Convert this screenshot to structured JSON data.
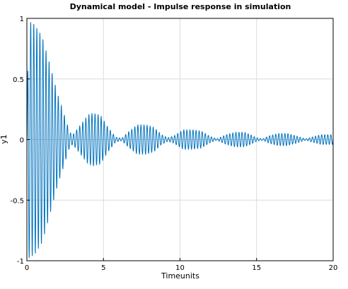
{
  "chart_data": {
    "type": "line",
    "title": "Dynamical model - Impulse response in simulation",
    "xlabel": "Timeunits",
    "ylabel": "y1",
    "xlim": [
      0,
      20
    ],
    "ylim": [
      -1,
      1
    ],
    "xticks": [
      0,
      5,
      10,
      15,
      20
    ],
    "xtick_labels": [
      "0",
      "5",
      "10",
      "15",
      "20"
    ],
    "yticks": [
      -1,
      -0.5,
      0,
      0.5,
      1
    ],
    "ytick_labels": [
      "-1",
      "-0.5",
      "0",
      "0.5",
      "1"
    ],
    "grid": true,
    "series": [
      {
        "color": "#0072bd",
        "peak_envelope": [
          [
            0.1,
            0.98
          ],
          [
            0.5,
            0.95
          ],
          [
            1.0,
            0.85
          ],
          [
            1.5,
            0.62
          ],
          [
            2.0,
            0.38
          ],
          [
            2.5,
            0.18
          ],
          [
            2.8,
            0.06
          ],
          [
            3.0,
            0.04
          ],
          [
            3.5,
            0.12
          ],
          [
            4.0,
            0.2
          ],
          [
            4.3,
            0.22
          ],
          [
            4.8,
            0.2
          ],
          [
            5.3,
            0.1
          ],
          [
            5.8,
            0.02
          ],
          [
            6.2,
            0.01
          ],
          [
            6.6,
            0.06
          ],
          [
            7.2,
            0.12
          ],
          [
            7.8,
            0.12
          ],
          [
            8.3,
            0.1
          ],
          [
            8.8,
            0.04
          ],
          [
            9.2,
            0.015
          ],
          [
            9.6,
            0.03
          ],
          [
            10.2,
            0.08
          ],
          [
            10.8,
            0.08
          ],
          [
            11.4,
            0.07
          ],
          [
            11.9,
            0.03
          ],
          [
            12.4,
            0.005
          ],
          [
            13.0,
            0.04
          ],
          [
            13.6,
            0.06
          ],
          [
            14.2,
            0.06
          ],
          [
            14.6,
            0.04
          ],
          [
            15.0,
            0.015
          ],
          [
            15.4,
            0.005
          ],
          [
            15.8,
            0.03
          ],
          [
            16.4,
            0.05
          ],
          [
            17.0,
            0.05
          ],
          [
            17.6,
            0.03
          ],
          [
            18.2,
            0.005
          ],
          [
            18.6,
            0.02
          ],
          [
            19.2,
            0.04
          ],
          [
            20.0,
            0.04
          ]
        ],
        "oscillation_period": 0.2
      }
    ]
  }
}
